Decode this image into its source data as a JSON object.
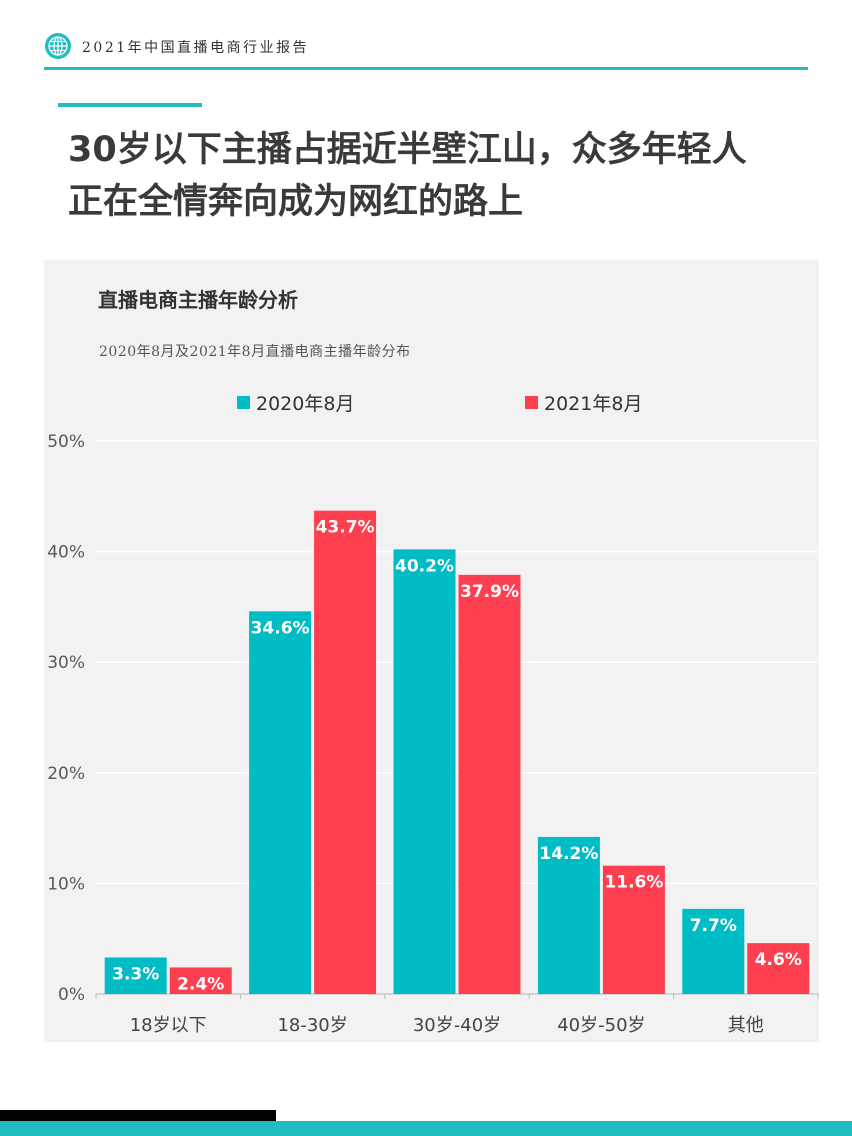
{
  "header": {
    "text": "2021年中国直播电商行业报告"
  },
  "page_title": {
    "line1": "30岁以下主播占据近半壁江山，众多年轻人",
    "line2": "正在全情奔向成为网红的路上"
  },
  "colors": {
    "teal": "#00bcc4",
    "red": "#fd3f4f",
    "accent": "#1fbcc1"
  },
  "chart_data": {
    "type": "bar",
    "title": "直播电商主播年龄分析",
    "subtitle": "2020年8月及2021年8月直播电商主播年龄分布",
    "categories": [
      "18岁以下",
      "18-30岁",
      "30岁-40岁",
      "40岁-50岁",
      "其他"
    ],
    "series": [
      {
        "name": "2020年8月",
        "values": [
          3.3,
          34.6,
          40.2,
          14.2,
          7.7
        ],
        "labels": [
          "3.3%",
          "34.6%",
          "40.2%",
          "14.2%",
          "7.7%"
        ]
      },
      {
        "name": "2021年8月",
        "values": [
          2.4,
          43.7,
          37.9,
          11.6,
          4.6
        ],
        "labels": [
          "2.4%",
          "43.7%",
          "37.9%",
          "11.6%",
          "4.6%"
        ]
      }
    ],
    "yticks": [
      "0%",
      "10%",
      "20%",
      "30%",
      "40%",
      "50%"
    ],
    "ylim": [
      0,
      50
    ],
    "legend_position": "top",
    "grid": true
  }
}
